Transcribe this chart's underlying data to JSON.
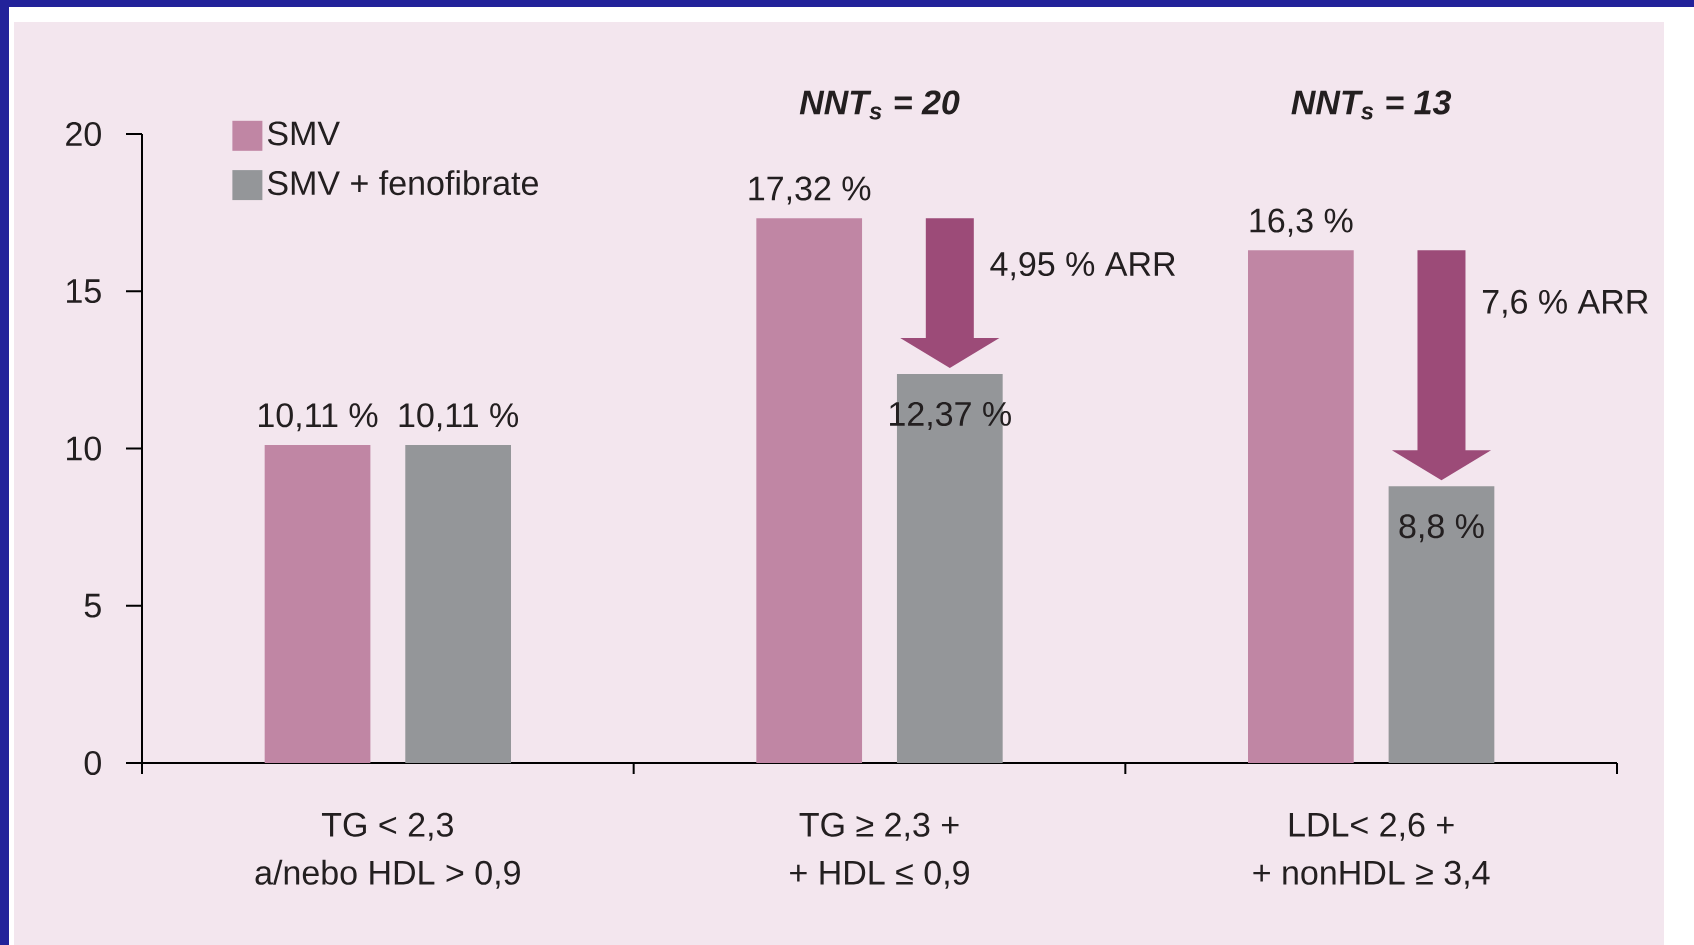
{
  "chart_data": {
    "type": "bar",
    "categories": [
      "TG < 2,3\na/nebo HDL > 0,9",
      "TG ≥ 2,3 +\n+ HDL ≤ 0,9",
      "LDL< 2,6 +\n+ nonHDL ≥ 3,4"
    ],
    "series": [
      {
        "name": "SMV",
        "color": "#c086a4",
        "values": [
          10.11,
          17.32,
          16.3
        ],
        "value_labels": [
          "10,11 %",
          "17,32 %",
          "16,3 %"
        ]
      },
      {
        "name": "SMV + fenofibrate",
        "color": "#949699",
        "values": [
          10.11,
          12.37,
          8.8
        ],
        "value_labels": [
          "10,11 %",
          "12,37 %",
          "8,8 %"
        ]
      }
    ],
    "ylim": [
      0,
      20
    ],
    "yticks": [
      0,
      5,
      10,
      15,
      20
    ],
    "legend": "top left",
    "annotations": [
      "NNT$_{s}$ = 20",
      "NNT$_{s}$ = 13",
      "4,95 % ARR",
      "7,6 % ARR"
    ]
  }
}
